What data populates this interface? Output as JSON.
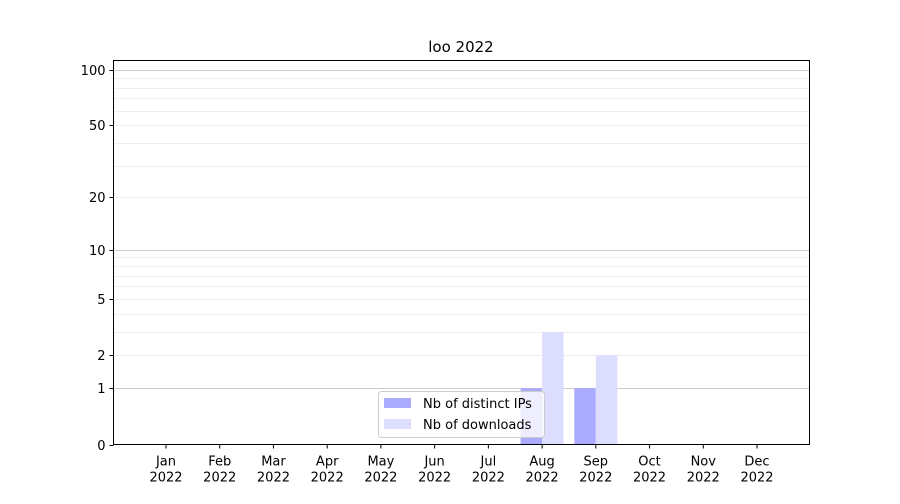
{
  "chart_data": {
    "type": "bar",
    "title": "loo 2022",
    "xlabel": "",
    "ylabel": "",
    "y_scale": "log(1+y)",
    "ylim": [
      0,
      112
    ],
    "yticks": [
      0,
      1,
      2,
      5,
      10,
      20,
      50,
      100
    ],
    "grid": true,
    "legend_position": "lower center",
    "categories": [
      "Jan\n2022",
      "Feb\n2022",
      "Mar\n2022",
      "Apr\n2022",
      "May\n2022",
      "Jun\n2022",
      "Jul\n2022",
      "Aug\n2022",
      "Sep\n2022",
      "Oct\n2022",
      "Nov\n2022",
      "Dec\n2022"
    ],
    "series": [
      {
        "name": "Nb of distinct IPs",
        "color": "#aaaaff",
        "values": [
          0,
          0,
          0,
          0,
          0,
          0,
          0,
          1,
          1,
          0,
          0,
          0
        ]
      },
      {
        "name": "Nb of downloads",
        "color": "#ddddff",
        "values": [
          0,
          0,
          0,
          0,
          0,
          0,
          0,
          3,
          2,
          0,
          0,
          0
        ]
      }
    ]
  }
}
